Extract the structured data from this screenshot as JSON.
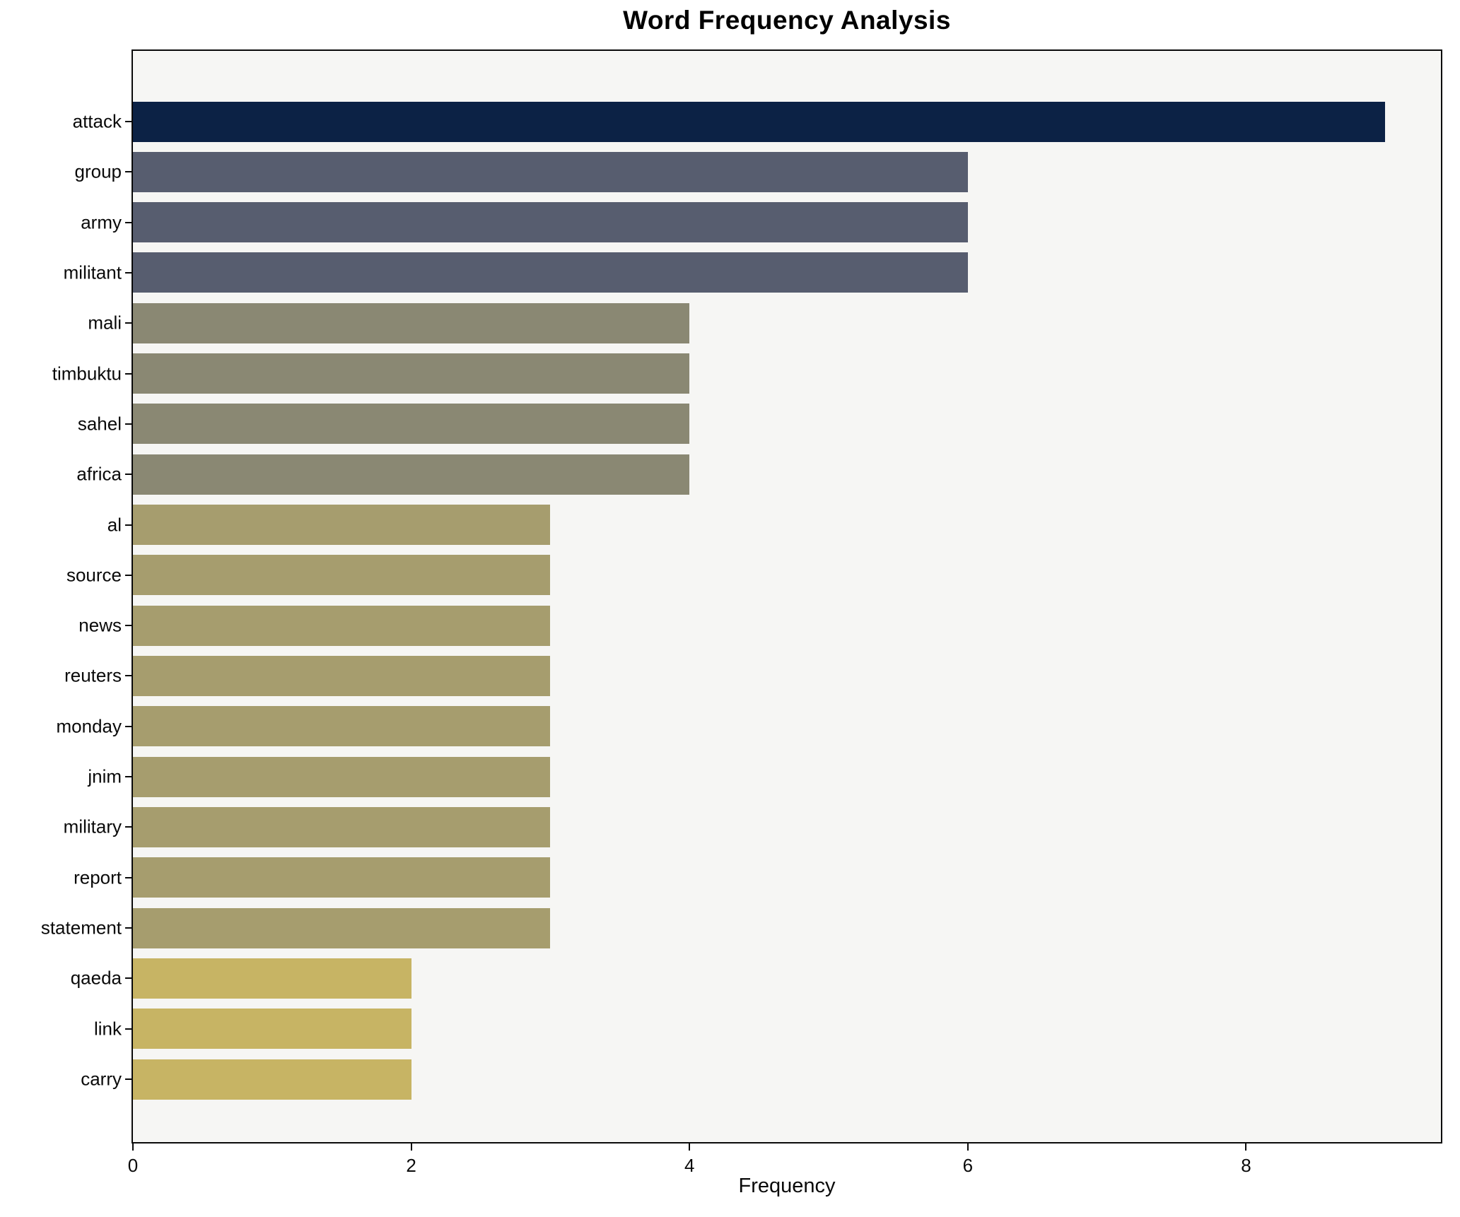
{
  "title": "Word Frequency Analysis",
  "chart_data": {
    "type": "bar",
    "orientation": "horizontal",
    "title": "Word Frequency Analysis",
    "xlabel": "Frequency",
    "ylabel": "",
    "categories": [
      "attack",
      "group",
      "army",
      "militant",
      "mali",
      "timbuktu",
      "sahel",
      "africa",
      "al",
      "source",
      "news",
      "reuters",
      "monday",
      "jnim",
      "military",
      "report",
      "statement",
      "qaeda",
      "link",
      "carry"
    ],
    "values": [
      9,
      6,
      6,
      6,
      4,
      4,
      4,
      4,
      3,
      3,
      3,
      3,
      3,
      3,
      3,
      3,
      3,
      2,
      2,
      2
    ],
    "xticks": [
      0,
      2,
      4,
      6,
      8
    ],
    "xlim": [
      0,
      9.4
    ],
    "grid": false,
    "legend_position": "none",
    "colors": {
      "figure_background": "#ffffff",
      "plot_background": "#f6f6f4",
      "spine": "#0a0a0a",
      "by_value": {
        "9": "#0c2245",
        "6": "#575d6f",
        "4": "#8a8873",
        "3": "#a69d6e",
        "2": "#c7b464"
      }
    }
  }
}
